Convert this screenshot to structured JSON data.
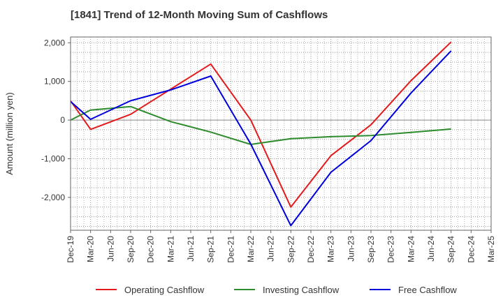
{
  "chart_data": {
    "type": "line",
    "title": "[1841]  Trend of 12-Month Moving Sum of Cashflows",
    "xlabel": "",
    "ylabel": "Amount (million yen)",
    "ylim": [
      -2850,
      2150
    ],
    "yticks": [
      2000,
      1000,
      0,
      -1000,
      -2000
    ],
    "ytick_labels": [
      "2,000",
      "1,000",
      "0",
      "-1,000",
      "-2,000"
    ],
    "x": [
      "Dec-19",
      "Mar-20",
      "Jun-20",
      "Sep-20",
      "Dec-20",
      "Mar-21",
      "Jun-21",
      "Sep-21",
      "Dec-21",
      "Mar-22",
      "Jun-22",
      "Sep-22",
      "Dec-22",
      "Mar-23",
      "Jun-23",
      "Sep-23",
      "Dec-23",
      "Mar-24",
      "Jun-24",
      "Sep-24",
      "Dec-24",
      "Mar-25"
    ],
    "grid": true,
    "legend_position": "bottom",
    "series": [
      {
        "name": "Operating Cashflow",
        "color": "#e41a1c",
        "points": [
          {
            "x": "Dec-19",
            "y": 500
          },
          {
            "x": "Mar-20",
            "y": -240
          },
          {
            "x": "Sep-20",
            "y": 150
          },
          {
            "x": "Sep-21",
            "y": 1450
          },
          {
            "x": "Mar-22",
            "y": 0
          },
          {
            "x": "Sep-22",
            "y": -2250
          },
          {
            "x": "Mar-23",
            "y": -920
          },
          {
            "x": "Sep-23",
            "y": -120
          },
          {
            "x": "Mar-24",
            "y": 1020
          },
          {
            "x": "Sep-24",
            "y": 2020
          }
        ]
      },
      {
        "name": "Investing Cashflow",
        "color": "#2e8b2e",
        "points": [
          {
            "x": "Dec-19",
            "y": 0
          },
          {
            "x": "Mar-20",
            "y": 260
          },
          {
            "x": "Sep-20",
            "y": 350
          },
          {
            "x": "Mar-21",
            "y": -40
          },
          {
            "x": "Sep-21",
            "y": -310
          },
          {
            "x": "Mar-22",
            "y": -630
          },
          {
            "x": "Sep-22",
            "y": -480
          },
          {
            "x": "Mar-23",
            "y": -430
          },
          {
            "x": "Sep-23",
            "y": -400
          },
          {
            "x": "Mar-24",
            "y": -320
          },
          {
            "x": "Sep-24",
            "y": -230
          }
        ]
      },
      {
        "name": "Free Cashflow",
        "color": "#0000dd",
        "points": [
          {
            "x": "Dec-19",
            "y": 480
          },
          {
            "x": "Mar-20",
            "y": 20
          },
          {
            "x": "Sep-20",
            "y": 500
          },
          {
            "x": "Mar-21",
            "y": 780
          },
          {
            "x": "Sep-21",
            "y": 1140
          },
          {
            "x": "Mar-22",
            "y": -620
          },
          {
            "x": "Sep-22",
            "y": -2730
          },
          {
            "x": "Mar-23",
            "y": -1350
          },
          {
            "x": "Sep-23",
            "y": -530
          },
          {
            "x": "Mar-24",
            "y": 700
          },
          {
            "x": "Sep-24",
            "y": 1790
          }
        ]
      }
    ]
  }
}
